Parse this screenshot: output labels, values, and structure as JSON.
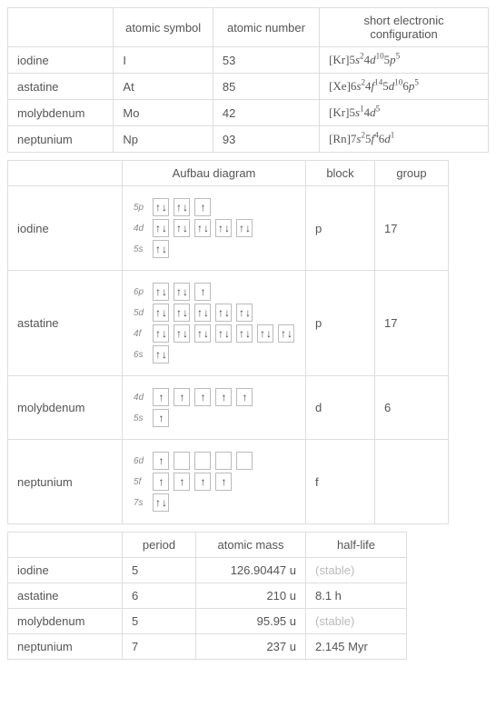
{
  "t1": {
    "headers": [
      "atomic symbol",
      "atomic number",
      "short electronic configuration"
    ],
    "rows": [
      {
        "name": "iodine",
        "symbol": "I",
        "num": "53",
        "config_parts": [
          "[Kr]5",
          "s",
          "2",
          "4",
          "d",
          "10",
          "5",
          "p",
          "5"
        ]
      },
      {
        "name": "astatine",
        "symbol": "At",
        "num": "85",
        "config_parts": [
          "[Xe]6",
          "s",
          "2",
          "4",
          "f",
          "14",
          "5",
          "d",
          "10",
          "6",
          "p",
          "5"
        ]
      },
      {
        "name": "molybdenum",
        "symbol": "Mo",
        "num": "42",
        "config_parts": [
          "[Kr]5",
          "s",
          "1",
          "4",
          "d",
          "5"
        ]
      },
      {
        "name": "neptunium",
        "symbol": "Np",
        "num": "93",
        "config_parts": [
          "[Rn]7",
          "s",
          "2",
          "5",
          "f",
          "4",
          "6",
          "d",
          "1"
        ]
      }
    ]
  },
  "t2": {
    "headers": [
      "Aufbau diagram",
      "block",
      "group"
    ],
    "rows": [
      {
        "name": "iodine",
        "block": "p",
        "group": "17",
        "levels": [
          {
            "label": "5p",
            "boxes": [
              2,
              2,
              1
            ]
          },
          {
            "label": "4d",
            "boxes": [
              2,
              2,
              2,
              2,
              2
            ]
          },
          {
            "label": "5s",
            "boxes": [
              2
            ]
          }
        ]
      },
      {
        "name": "astatine",
        "block": "p",
        "group": "17",
        "levels": [
          {
            "label": "6p",
            "boxes": [
              2,
              2,
              1
            ]
          },
          {
            "label": "5d",
            "boxes": [
              2,
              2,
              2,
              2,
              2
            ]
          },
          {
            "label": "4f",
            "boxes": [
              2,
              2,
              2,
              2,
              2,
              2,
              2
            ]
          },
          {
            "label": "6s",
            "boxes": [
              2
            ]
          }
        ]
      },
      {
        "name": "molybdenum",
        "block": "d",
        "group": "6",
        "levels": [
          {
            "label": "4d",
            "boxes": [
              1,
              1,
              1,
              1,
              1
            ]
          },
          {
            "label": "5s",
            "boxes": [
              1
            ]
          }
        ]
      },
      {
        "name": "neptunium",
        "block": "f",
        "group": "",
        "levels": [
          {
            "label": "6d",
            "boxes": [
              1,
              0,
              0,
              0,
              0
            ]
          },
          {
            "label": "5f",
            "boxes": [
              1,
              1,
              1,
              1
            ]
          },
          {
            "label": "7s",
            "boxes": [
              2
            ]
          }
        ]
      }
    ]
  },
  "t3": {
    "headers": [
      "period",
      "atomic mass",
      "half-life"
    ],
    "rows": [
      {
        "name": "iodine",
        "period": "5",
        "mass": "126.90447 u",
        "half": "(stable)",
        "pale": true
      },
      {
        "name": "astatine",
        "period": "6",
        "mass": "210 u",
        "half": "8.1 h",
        "pale": false
      },
      {
        "name": "molybdenum",
        "period": "5",
        "mass": "95.95 u",
        "half": "(stable)",
        "pale": true
      },
      {
        "name": "neptunium",
        "period": "7",
        "mass": "237 u",
        "half": "2.145 Myr",
        "pale": false
      }
    ]
  },
  "col_widths": {
    "t1": [
      105,
      110,
      120,
      195
    ],
    "t2": [
      105,
      180,
      55,
      60
    ],
    "t3": [
      105,
      60,
      100,
      90
    ]
  },
  "colors": {
    "border": "#dddddd",
    "text": "#555555",
    "pale": "#bbbbbb",
    "arrow": "#444444",
    "box_border": "#bbbbbb"
  }
}
